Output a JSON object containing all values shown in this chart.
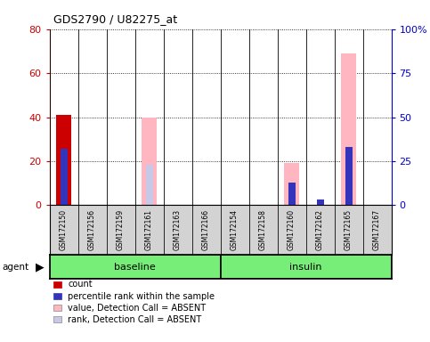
{
  "title": "GDS2790 / U82275_at",
  "samples": [
    "GSM172150",
    "GSM172156",
    "GSM172159",
    "GSM172161",
    "GSM172163",
    "GSM172166",
    "GSM172154",
    "GSM172158",
    "GSM172160",
    "GSM172162",
    "GSM172165",
    "GSM172167"
  ],
  "count_values": [
    41,
    0,
    0,
    0,
    0,
    0,
    0,
    0,
    0,
    0,
    0,
    0
  ],
  "rank_pct": [
    32,
    0,
    0,
    0,
    0,
    0,
    0,
    0,
    13,
    3,
    33,
    0
  ],
  "absent_value": [
    0,
    0,
    0,
    40,
    0,
    0,
    0,
    0,
    19,
    0,
    69,
    0
  ],
  "absent_rank_pct": [
    0,
    0,
    0,
    23,
    0,
    0,
    0,
    0,
    13,
    3,
    33,
    0
  ],
  "left_ylim": [
    0,
    80
  ],
  "right_ylim": [
    0,
    100
  ],
  "left_yticks": [
    0,
    20,
    40,
    60,
    80
  ],
  "right_yticks": [
    0,
    25,
    50,
    75,
    100
  ],
  "right_yticklabels": [
    "0",
    "25",
    "50",
    "75",
    "100%"
  ],
  "count_color": "#CC0000",
  "rank_color": "#3333BB",
  "absent_value_color": "#FFB6C1",
  "absent_rank_color": "#C8C8E8",
  "plot_bg": "#FFFFFF",
  "left_tick_color": "#CC0000",
  "right_tick_color": "#0000CC",
  "bar_width": 0.55,
  "rank_bar_width": 0.25,
  "baseline_samples": [
    0,
    1,
    2,
    3,
    4,
    5
  ],
  "insulin_samples": [
    6,
    7,
    8,
    9,
    10,
    11
  ],
  "group_color": "#77EE77",
  "sample_box_color": "#D3D3D3",
  "legend_items": [
    {
      "label": "count",
      "color": "#CC0000"
    },
    {
      "label": "percentile rank within the sample",
      "color": "#3333BB"
    },
    {
      "label": "value, Detection Call = ABSENT",
      "color": "#FFB6C1"
    },
    {
      "label": "rank, Detection Call = ABSENT",
      "color": "#C8C8E8"
    }
  ]
}
